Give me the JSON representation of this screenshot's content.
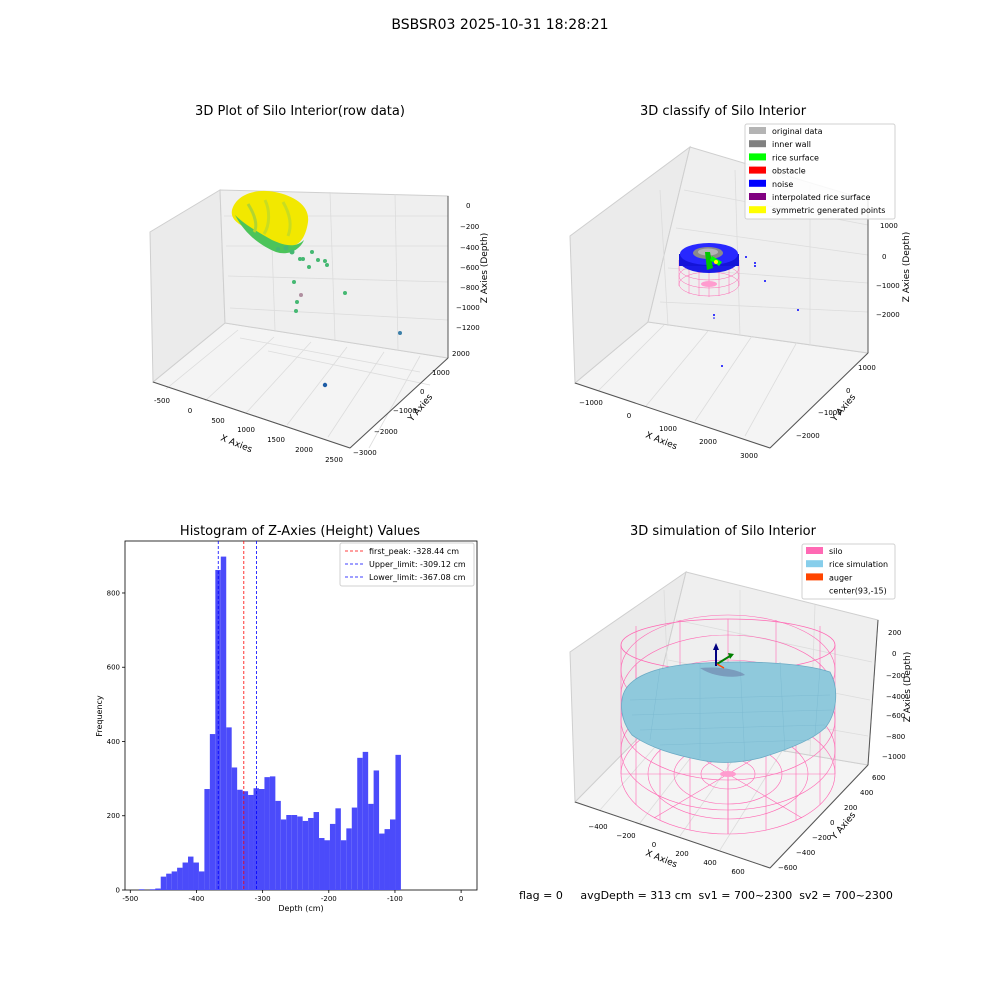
{
  "suptitle": "BSBSR03 2025-10-31 18:28:21",
  "panels": {
    "raw": {
      "title": "3D Plot of Silo Interior(row data)",
      "xlabel": "X Axies",
      "ylabel": "Y Axies",
      "zlabel": "Z Axies (Depth)",
      "xticks": [
        "-500",
        "0",
        "500",
        "1000",
        "1500",
        "2000",
        "2500"
      ],
      "yticks": [
        "2000",
        "1000",
        "0",
        "−1000",
        "−2000",
        "−3000"
      ],
      "zticks": [
        "0",
        "−200",
        "−400",
        "−600",
        "−800",
        "−1000",
        "−1200"
      ]
    },
    "classify": {
      "title": "3D classify of Silo Interior",
      "xlabel": "X Axies",
      "ylabel": "Y Axies",
      "zlabel": "Z Axies (Depth)",
      "xticks": [
        "−1000",
        "0",
        "1000",
        "2000",
        "3000"
      ],
      "yticks": [
        "1000",
        "0",
        "−1000",
        "−2000"
      ],
      "zticks": [
        "1000",
        "0",
        "−1000",
        "−2000"
      ],
      "legend": [
        {
          "label": "original data",
          "color": "#b4b4b4"
        },
        {
          "label": "inner wall",
          "color": "#808080"
        },
        {
          "label": "rice surface",
          "color": "#00ff00"
        },
        {
          "label": "obstacle",
          "color": "#ff0000"
        },
        {
          "label": "noise",
          "color": "#0000ff"
        },
        {
          "label": "interpolated rice surface",
          "color": "#800080"
        },
        {
          "label": "symmetric generated points",
          "color": "#ffff00"
        }
      ]
    },
    "simulation": {
      "title": "3D simulation of Silo Interior",
      "xlabel": "X Axies",
      "ylabel": "Y Axies",
      "zlabel": "Z Axies (Depth)",
      "xticks": [
        "−400",
        "−200",
        "0",
        "200",
        "400",
        "600"
      ],
      "yticks": [
        "600",
        "400",
        "200",
        "0",
        "−200",
        "−400",
        "−600"
      ],
      "zticks": [
        "200",
        "0",
        "−200",
        "−400",
        "−600",
        "−800",
        "−1000"
      ],
      "legend": [
        {
          "label": "silo",
          "color": "#ff69b4"
        },
        {
          "label": "rice simulation",
          "color": "#87ceeb"
        },
        {
          "label": "auger",
          "color": "#ff4500"
        },
        {
          "label": "center(93,-15)",
          "color": ""
        }
      ]
    }
  },
  "chart_data": {
    "type": "bar",
    "title": "Histogram of Z-Axies (Height) Values",
    "xlabel": "Depth (cm)",
    "ylabel": "Frequency",
    "xlim": [
      -508,
      24
    ],
    "ylim": [
      0,
      940
    ],
    "xticks": [
      -500,
      -400,
      -300,
      -200,
      -100,
      0
    ],
    "yticks": [
      0,
      200,
      400,
      600,
      800
    ],
    "bin_start": -487,
    "bin_width": 8.25,
    "values": [
      2,
      0,
      2,
      4,
      36,
      44,
      50,
      60,
      74,
      90,
      74,
      50,
      272,
      420,
      862,
      898,
      438,
      330,
      270,
      266,
      256,
      274,
      272,
      304,
      306,
      240,
      190,
      202,
      202,
      198,
      186,
      194,
      210,
      140,
      134,
      178,
      220,
      134,
      166,
      222,
      356,
      372,
      232,
      322,
      152,
      164,
      190,
      364
    ],
    "lines": [
      {
        "name": "first_peak: -328.44 cm",
        "x": -328.44,
        "color": "#ff0000"
      },
      {
        "name": "Upper_limit: -309.12 cm",
        "x": -309.12,
        "color": "#0000ff"
      },
      {
        "name": "Lower_limit: -367.08 cm",
        "x": -367.08,
        "color": "#0000ff"
      }
    ],
    "bar_color": "#4b4bfa"
  },
  "footer": {
    "text": "flag = 0     avgDepth = 313 cm  sv1 = 700~2300  sv2 = 700~2300"
  }
}
